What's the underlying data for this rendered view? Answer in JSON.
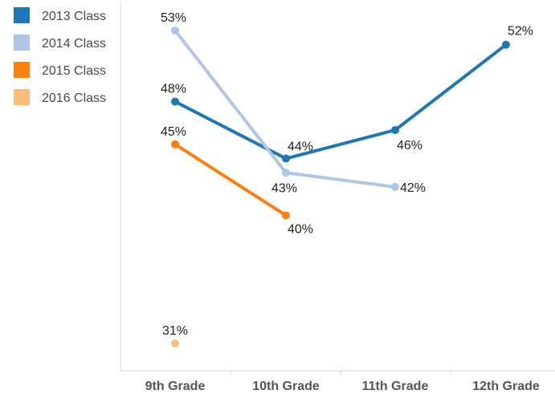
{
  "chart_data": {
    "type": "line",
    "title": "",
    "xlabel": "",
    "ylabel": "",
    "categories": [
      "9th Grade",
      "10th Grade",
      "11th Grade",
      "12th Grade"
    ],
    "ylim": [
      31,
      53
    ],
    "grid": false,
    "legend_position": "top-left",
    "series": [
      {
        "name": "2013 Class",
        "color": "#1f77b4",
        "values": [
          48,
          44,
          46,
          52
        ],
        "labels": [
          "48%",
          "44%",
          "46%",
          "52%"
        ]
      },
      {
        "name": "2014 Class",
        "color": "#aec7e8",
        "values": [
          53,
          43,
          42,
          null
        ],
        "labels": [
          "53%",
          "43%",
          "42%",
          ""
        ]
      },
      {
        "name": "2015 Class",
        "color": "#ff7f0e",
        "values": [
          45,
          40,
          null,
          null
        ],
        "labels": [
          "45%",
          "40%",
          "",
          ""
        ]
      },
      {
        "name": "2016 Class",
        "color": "#ffbb78",
        "values": [
          31,
          null,
          null,
          null
        ],
        "labels": [
          "31%",
          "",
          "",
          ""
        ]
      }
    ]
  }
}
